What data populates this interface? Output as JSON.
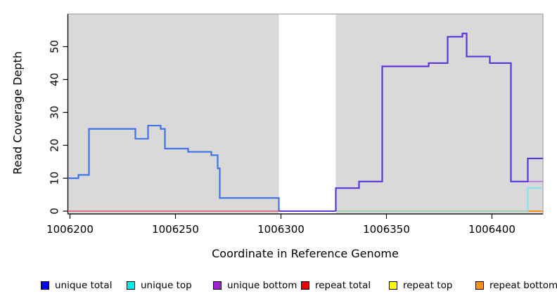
{
  "chart_data": {
    "type": "line",
    "subtype": "step",
    "title": "",
    "xlabel": "Coordinate in Reference Genome",
    "ylabel": "Read Coverage Depth",
    "xlim": [
      1006199,
      1006424.5
    ],
    "ylim": [
      0,
      60
    ],
    "x_ticks": [
      1006200,
      1006250,
      1006300,
      1006350,
      1006400
    ],
    "x_tick_labels": [
      "1006200",
      "1006250",
      "1006300",
      "1006350",
      "1006400"
    ],
    "y_ticks": [
      0,
      10,
      20,
      30,
      40,
      50
    ],
    "y_tick_labels": [
      "0",
      "10",
      "20",
      "30",
      "40",
      "50"
    ],
    "grid": false,
    "panel_bg": "#d9d9d9",
    "panel_border": "#adadad",
    "masked_region": {
      "x_start": 1006299,
      "x_end": 1006326,
      "color": "#ffffff"
    },
    "series": [
      {
        "name": "repeat-total-zero-left",
        "color": "#e25072",
        "width": 1.6,
        "points": [
          [
            1006199,
            0
          ]
        ],
        "x_end": 1006299
      },
      {
        "name": "zero-line-right-of-gap",
        "color": "#90ce9e",
        "width": 1.6,
        "points": [
          [
            1006326,
            0
          ]
        ],
        "x_end": 1006417
      },
      {
        "name": "repeat-bottom-far-right",
        "color": "#ff9010",
        "width": 2,
        "points": [
          [
            1006417,
            0
          ]
        ],
        "x_end": 1006424.5
      },
      {
        "name": "unique-top-far-right",
        "color": "#7ee4ec",
        "width": 2,
        "points": [
          [
            1006417,
            0
          ],
          [
            1006417,
            7
          ]
        ],
        "x_end": 1006424.5
      },
      {
        "name": "unique-bottom-far-right",
        "color": "#b27fde",
        "width": 2,
        "points": [
          [
            1006417,
            9
          ]
        ],
        "x_end": 1006424.5
      },
      {
        "name": "unique-total-left-of-gap",
        "color": "#3e74e8",
        "width": 2.2,
        "points": [
          [
            1006199,
            10
          ],
          [
            1006204,
            11
          ],
          [
            1006209,
            25
          ],
          [
            1006231,
            22
          ],
          [
            1006237,
            26
          ],
          [
            1006243,
            25
          ],
          [
            1006245,
            19
          ],
          [
            1006256,
            18
          ],
          [
            1006267,
            17
          ],
          [
            1006270,
            13
          ],
          [
            1006271,
            4
          ],
          [
            1006299,
            0
          ]
        ],
        "x_end": 1006299
      },
      {
        "name": "zero-line-in-gap",
        "color": "#5444e6",
        "width": 2,
        "points": [
          [
            1006299,
            0
          ]
        ],
        "x_end": 1006326
      },
      {
        "name": "unique-total-right-of-gap",
        "color": "#5a36db",
        "width": 2.2,
        "points": [
          [
            1006326,
            0
          ],
          [
            1006326,
            7
          ],
          [
            1006337,
            9
          ],
          [
            1006348,
            44
          ],
          [
            1006370,
            45
          ],
          [
            1006379,
            53
          ],
          [
            1006386,
            54
          ],
          [
            1006388,
            47
          ],
          [
            1006399,
            45
          ],
          [
            1006409,
            9
          ],
          [
            1006417,
            16
          ]
        ],
        "x_end": 1006424.5
      }
    ],
    "legend_position": "bottom"
  },
  "legend": {
    "items": [
      {
        "label": "unique total",
        "color": "#0000ee"
      },
      {
        "label": "unique top",
        "color": "#00eeee"
      },
      {
        "label": "unique bottom",
        "color": "#a020d0"
      },
      {
        "label": "repeat total",
        "color": "#ee0000"
      },
      {
        "label": "repeat top",
        "color": "#ffff00"
      },
      {
        "label": "repeat bottom",
        "color": "#ff9010"
      }
    ]
  }
}
